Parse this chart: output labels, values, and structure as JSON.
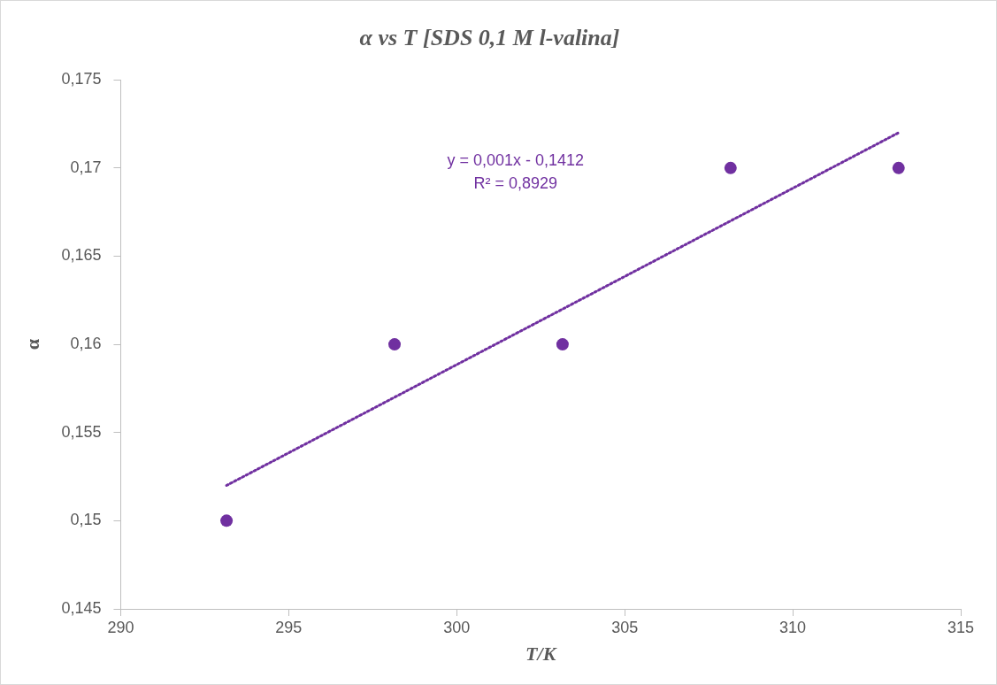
{
  "chart_data": {
    "type": "scatter",
    "title": "α vs T [SDS 0,1 M l-valina]",
    "xlabel": "T/K",
    "ylabel": "α",
    "x": [
      293.15,
      298.15,
      303.15,
      308.15,
      313.15
    ],
    "series": [
      {
        "color": "#7030a0",
        "marker": "circle",
        "values": [
          0.15,
          0.16,
          0.16,
          0.17,
          0.17
        ]
      },
      {
        "type": "line",
        "color": "#7030a0",
        "line_style": "dotted",
        "marker": "none",
        "x": [
          293.15,
          313.15
        ],
        "values": [
          0.152,
          0.172
        ]
      }
    ],
    "xlim": [
      290,
      315
    ],
    "xticks": [
      290,
      295,
      300,
      305,
      310,
      315
    ],
    "ylim": [
      0.145,
      0.175
    ],
    "yticks": [
      {
        "value": 0.145,
        "label": "0,145"
      },
      {
        "value": 0.15,
        "label": "0,15"
      },
      {
        "value": 0.155,
        "label": "0,155"
      },
      {
        "value": 0.16,
        "label": "0,16"
      },
      {
        "value": 0.165,
        "label": "0,165"
      },
      {
        "value": 0.17,
        "label": "0,17"
      },
      {
        "value": 0.175,
        "label": "0,175"
      }
    ],
    "annotations": [
      "y = 0,001x - 0,1412",
      "R² = 0,8929"
    ],
    "grid": false,
    "legend": false
  }
}
